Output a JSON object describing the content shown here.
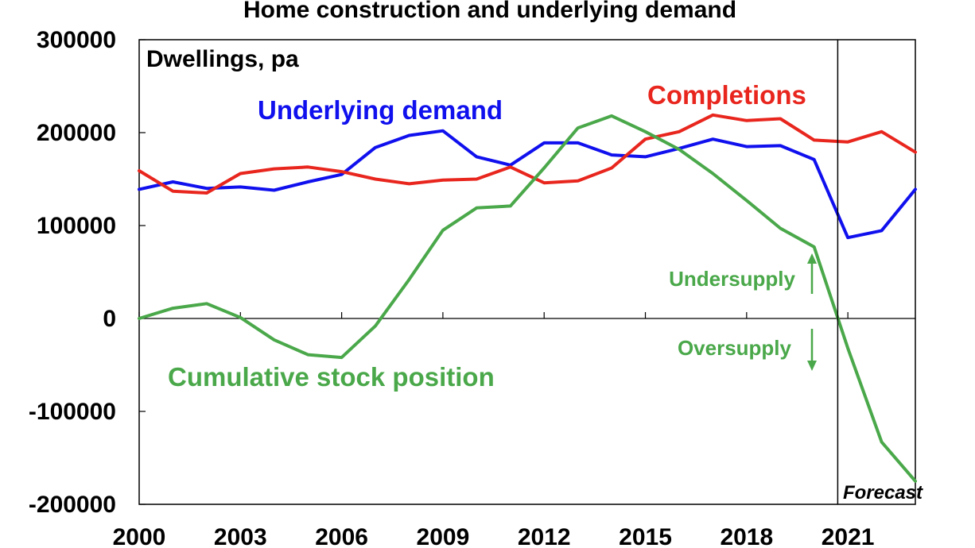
{
  "chart_data": {
    "type": "line",
    "title": "Home construction and underlying demand",
    "ylabel": "Dwellings, pa",
    "ylim": [
      -200000,
      300000
    ],
    "yticks": [
      300000,
      200000,
      100000,
      0,
      -100000,
      -200000
    ],
    "yticks_labels": [
      "300000",
      "200000",
      "100000",
      "0",
      "-100000",
      "-200000"
    ],
    "xlim": [
      2000,
      2023
    ],
    "xticks": [
      2000,
      2003,
      2006,
      2009,
      2012,
      2015,
      2018,
      2021
    ],
    "xticks_labels": [
      "2000",
      "2003",
      "2006",
      "2009",
      "2012",
      "2015",
      "2018",
      "2021"
    ],
    "x": [
      2000,
      2001,
      2002,
      2003,
      2004,
      2005,
      2006,
      2007,
      2008,
      2009,
      2010,
      2011,
      2012,
      2013,
      2014,
      2015,
      2016,
      2017,
      2018,
      2019,
      2020,
      2021,
      2022,
      2023
    ],
    "series": [
      {
        "name": "Underlying demand",
        "color": "#1010ee",
        "values": [
          139000,
          147000,
          140000,
          141500,
          138000,
          147000,
          155000,
          184000,
          197000,
          202000,
          174000,
          165000,
          189000,
          189000,
          176000,
          174000,
          183000,
          193000,
          185000,
          186000,
          171000,
          87000,
          94500,
          139000
        ]
      },
      {
        "name": "Completions",
        "color": "#e8261e",
        "values": [
          159000,
          137000,
          135000,
          156000,
          161000,
          163000,
          158000,
          150000,
          145000,
          149000,
          150000,
          163000,
          146000,
          148000,
          162000,
          193000,
          201000,
          219000,
          213000,
          215000,
          192000,
          190000,
          201000,
          179000
        ]
      },
      {
        "name": "Cumulative stock position",
        "color": "#4aa84a",
        "values": [
          0,
          11000,
          16000,
          1000,
          -23000,
          -39000,
          -42000,
          -8000,
          42000,
          95000,
          119000,
          121000,
          162000,
          205000,
          218000,
          201000,
          182000,
          156000,
          127000,
          97000,
          77000,
          -32000,
          -133000,
          -175000
        ]
      }
    ],
    "annotations": {
      "undersupply": "Undersupply",
      "oversupply": "Oversupply",
      "forecast": "Forecast",
      "forecast_x": 2020.7
    },
    "grid": false,
    "legend": "inline labels"
  }
}
